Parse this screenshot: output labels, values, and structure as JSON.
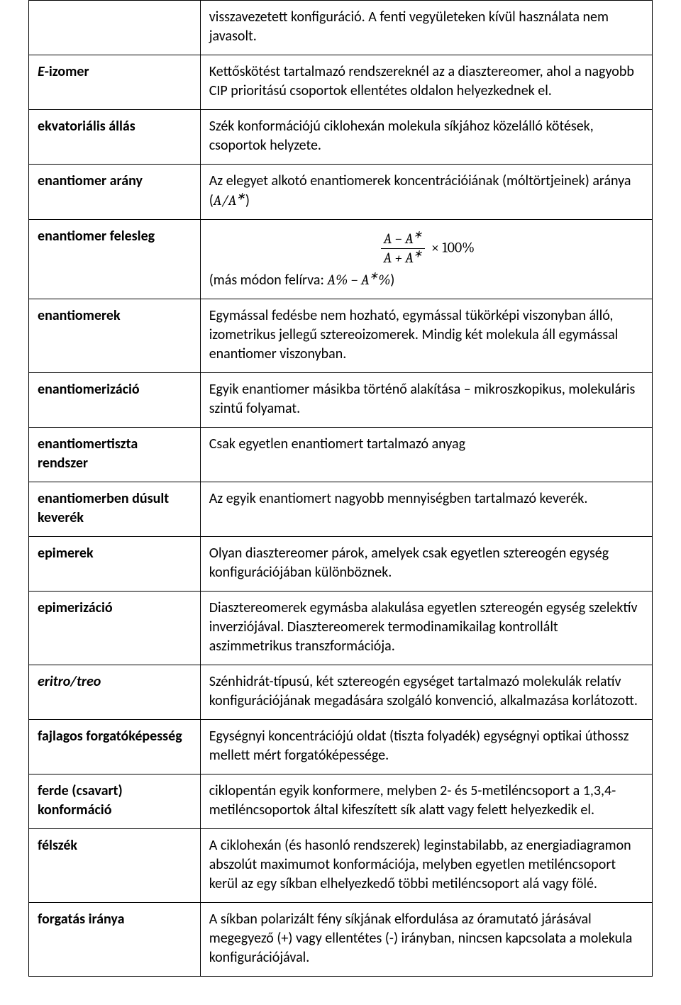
{
  "table": {
    "border_color": "#000000",
    "background_color": "#ffffff",
    "text_color": "#000000",
    "font_family": "Calibri, Segoe UI, Arial, sans-serif",
    "font_size_pt": 15,
    "col_widths_pct": [
      27.5,
      72.5
    ],
    "rows": [
      {
        "term": "",
        "term_style": "bold",
        "definition": "visszavezetett konfiguráció. A fenti vegyületeken kívül használata nem javasolt."
      },
      {
        "term": "E-izomer",
        "term_style": "bolditalic_prefix",
        "term_prefix": "E",
        "term_suffix": "-izomer",
        "definition": "Kettőskötést tartalmazó rendszereknél az a diasztereomer, ahol a nagyobb CIP prioritású csoportok ellentétes oldalon helyezkednek el."
      },
      {
        "term": "ekvatoriális állás",
        "term_style": "bold",
        "definition": "Szék konformációjú ciklohexán molekula síkjához közelálló kötések, csoportok helyzete."
      },
      {
        "term": "enantiomer arány",
        "term_style": "bold",
        "definition_pre": "Az elegyet alkotó enantiomerek koncentrációiának (móltörtjeinek) aránya (",
        "definition_math_ratio": {
          "A": "A",
          "Astar": "A*",
          "text": "A/A*"
        },
        "definition_post": ")"
      },
      {
        "term": "enantiomer felesleg",
        "term_style": "bold",
        "formula": {
          "numerator": "A − A*",
          "denominator": "A + A*",
          "tail": "× 100%"
        },
        "definition_after_formula_pre": "(más módon felírva: ",
        "definition_after_formula_math": "A% − A*%",
        "definition_after_formula_post": ")"
      },
      {
        "term": "enantiomerek",
        "term_style": "bold",
        "definition": "Egymással fedésbe nem hozható, egymással tükörképi viszonyban álló, izometrikus jellegű sztereoizomerek. Mindig két molekula áll egymással enantiomer viszonyban."
      },
      {
        "term": "enantiomerizáció",
        "term_style": "bold",
        "definition": "Egyik enantiomer másikba történő alakítása – mikroszkopikus, molekuláris szintű folyamat."
      },
      {
        "term": "enantiomertiszta rendszer",
        "term_style": "bold",
        "definition": "Csak egyetlen enantiomert tartalmazó anyag"
      },
      {
        "term": "enantiomerben dúsult keverék",
        "term_style": "bold",
        "definition": "Az egyik enantiomert nagyobb mennyiségben tartalmazó keverék."
      },
      {
        "term": "epimerek",
        "term_style": "bold",
        "definition": "Olyan diasztereomer párok, amelyek csak egyetlen sztereogén egység konfigurációjában különböznek."
      },
      {
        "term": "epimerizáció",
        "term_style": "bold",
        "definition": "Diasztereomerek egymásba alakulása egyetlen sztereogén egység szelektív inverziójával. Diasztereomerek termodinamikailag kontrollált aszimmetrikus transzformációja."
      },
      {
        "term": "eritro/treo",
        "term_style": "bolditalic",
        "definition": "Szénhidrát-típusú, két sztereogén egységet tartalmazó molekulák relatív konfigurációjának megadására szolgáló konvenció, alkalmazása korlátozott."
      },
      {
        "term": "fajlagos forgatóképesség",
        "term_style": "bold",
        "definition": "Egységnyi koncentrációjú oldat (tiszta folyadék) egységnyi optikai úthossz mellett mért forgatóképessége."
      },
      {
        "term": "ferde (csavart) konformáció",
        "term_style": "bold",
        "definition": "ciklopentán egyik konformere, melyben 2- és 5-metiléncsoport a 1,3,4-metiléncsoportok által kifeszített sík alatt vagy felett helyezkedik el."
      },
      {
        "term": "félszék",
        "term_style": "bold",
        "definition": "A ciklohexán (és hasonló rendszerek) leginstabilabb, az energiadiagramon abszolút maximumot konformációja, melyben egyetlen metiléncsoport kerül az egy síkban elhelyezkedő többi metiléncsoport alá vagy fölé."
      },
      {
        "term": "forgatás iránya",
        "term_style": "bold",
        "definition": "A síkban polarizált fény síkjának elfordulása az óramutató járásával megegyező (+) vagy ellentétes (-) irányban, nincsen kapcsolata a molekula konfigurációjával."
      }
    ]
  }
}
